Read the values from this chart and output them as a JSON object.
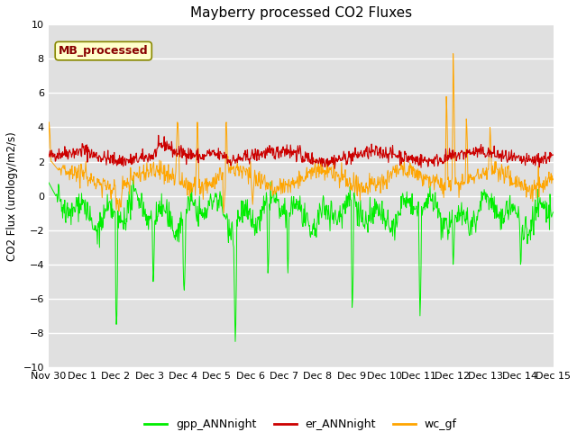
{
  "title": "Mayberry processed CO2 Fluxes",
  "ylabel": "CO2 Flux (urology/m2/s)",
  "ylim": [
    -10,
    10
  ],
  "yticks": [
    -10,
    -8,
    -6,
    -4,
    -2,
    0,
    2,
    4,
    6,
    8,
    10
  ],
  "bg_color": "#e0e0e0",
  "legend_label": "MB_processed",
  "legend_box_color": "#ffffcc",
  "legend_box_edge": "#880000",
  "line_colors": {
    "gpp": "#00ee00",
    "er": "#cc0000",
    "wc": "#ffa500"
  },
  "legend_entries": [
    {
      "label": "gpp_ANNnight",
      "color": "#00ee00"
    },
    {
      "label": "er_ANNnight",
      "color": "#cc0000"
    },
    {
      "label": "wc_gf",
      "color": "#ffa500"
    }
  ],
  "xtick_labels": [
    "Nov 30",
    "Dec 1",
    "Dec 2",
    "Dec 3",
    "Dec 4",
    "Dec 5",
    "Dec 6",
    "Dec 7",
    "Dec 8",
    "Dec 9",
    "Dec 10",
    "Dec 11",
    "Dec 12",
    "Dec 13",
    "Dec 14",
    "Dec 15"
  ],
  "n_points": 960,
  "seed": 42
}
